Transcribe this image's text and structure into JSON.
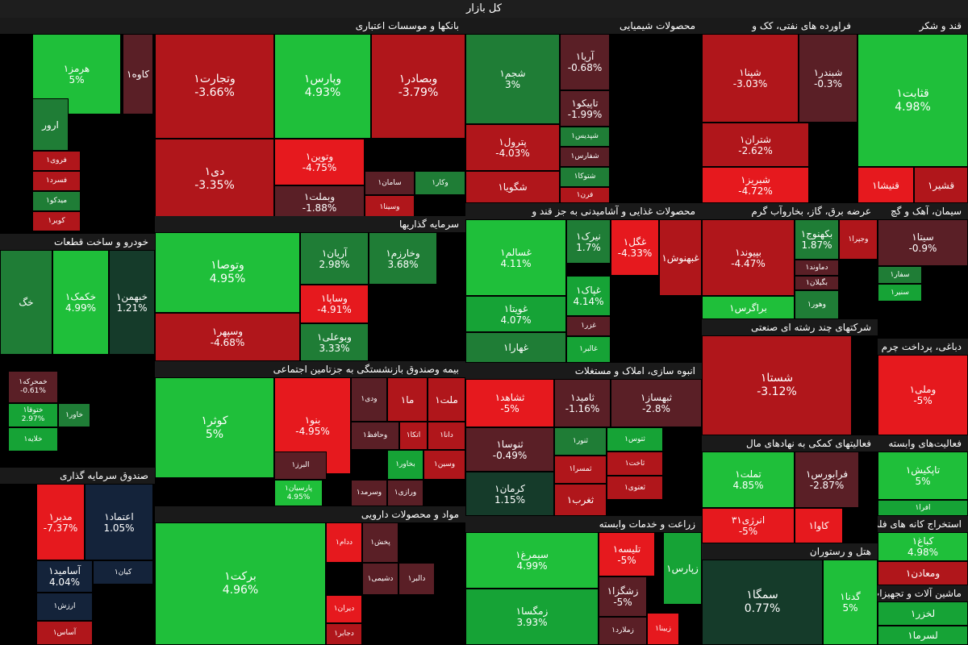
{
  "title": "کل بازار",
  "colors": {
    "strong_up": "#1fbf3a",
    "up": "#16a336",
    "mild_up": "#1f7d36",
    "flat": "#153b2a",
    "mild_down": "#5a1f26",
    "down": "#b0161b",
    "strong_down": "#e6191e",
    "navy": "#14233a"
  },
  "chart_data": {
    "type": "treemap",
    "sectors": [
      {
        "name": "",
        "tiles": [
          {
            "n": "هرمز۱",
            "v": "5%",
            "c": "strong_up"
          },
          {
            "n": "کاوه۱",
            "v": "",
            "c": "mild_down"
          },
          {
            "n": "فروی۱",
            "v": "",
            "c": "down"
          },
          {
            "n": "فسرد۱",
            "v": "",
            "c": "down"
          },
          {
            "n": "میدکو۱",
            "v": "",
            "c": "mild_up"
          },
          {
            "n": "کویر۱",
            "v": "",
            "c": "down"
          },
          {
            "n": "ارور",
            "v": "",
            "c": "mild_up"
          }
        ]
      },
      {
        "name": "بانکها و موسسات اعتباری",
        "tiles": [
          {
            "n": "وتجارت۱",
            "v": "-3.66%",
            "c": "down"
          },
          {
            "n": "وپارس۱",
            "v": "4.93%",
            "c": "strong_up"
          },
          {
            "n": "وبصادر۱",
            "v": "-3.79%",
            "c": "down"
          },
          {
            "n": "دی۱",
            "v": "-3.35%",
            "c": "down"
          },
          {
            "n": "وتوین۱",
            "v": "-4.75%",
            "c": "strong_down"
          },
          {
            "n": "وبملت۱",
            "v": "-1.88%",
            "c": "mild_down"
          },
          {
            "n": "سامان۱",
            "v": "",
            "c": "mild_down"
          },
          {
            "n": "وکار۱",
            "v": "",
            "c": "mild_up"
          },
          {
            "n": "وسینا۱",
            "v": "",
            "c": "down"
          }
        ]
      },
      {
        "name": "محصولات شیمیایی",
        "tiles": [
          {
            "n": "شجم۱",
            "v": "3%",
            "c": "mild_up"
          },
          {
            "n": "آریا۱",
            "v": "-0.68%",
            "c": "mild_down"
          },
          {
            "n": "تاپیکو۱",
            "v": "-1.99%",
            "c": "mild_down"
          },
          {
            "n": "پترول۱",
            "v": "-4.03%",
            "c": "down"
          },
          {
            "n": "شپدیس۱",
            "v": "",
            "c": "mild_up"
          },
          {
            "n": "شفارس۱",
            "v": "",
            "c": "mild_down"
          },
          {
            "n": "شگویا۱",
            "v": "",
            "c": "down"
          },
          {
            "n": "شتوکا۱",
            "v": "",
            "c": "mild_up"
          },
          {
            "n": "فرن۱",
            "v": "",
            "c": "down"
          }
        ]
      },
      {
        "name": "فراورده های نفتی، کک و",
        "tiles": [
          {
            "n": "شپنا۱",
            "v": "-3.03%",
            "c": "down"
          },
          {
            "n": "شبندر۱",
            "v": "-0.3%",
            "c": "mild_down"
          },
          {
            "n": "شتران۱",
            "v": "-2.62%",
            "c": "down"
          },
          {
            "n": "شبریز۱",
            "v": "-4.72%",
            "c": "strong_down"
          }
        ]
      },
      {
        "name": "قند و شکر",
        "tiles": [
          {
            "n": "قثابت۱",
            "v": "4.98%",
            "c": "strong_up"
          },
          {
            "n": "قنیشا۱",
            "v": "",
            "c": "strong_down"
          },
          {
            "n": "قشیر۱",
            "v": "",
            "c": "down"
          }
        ]
      },
      {
        "name": "سرمایه گذاریها",
        "tiles": [
          {
            "n": "وتوصا۱",
            "v": "4.95%",
            "c": "strong_up"
          },
          {
            "n": "آریان۱",
            "v": "2.98%",
            "c": "mild_up"
          },
          {
            "n": "وخارزم۱",
            "v": "3.68%",
            "c": "mild_up"
          },
          {
            "n": "وساپا۱",
            "v": "-4.91%",
            "c": "strong_down"
          },
          {
            "n": "وسپهر۱",
            "v": "-4.68%",
            "c": "down"
          },
          {
            "n": "وبوعلی۱",
            "v": "3.33%",
            "c": "mild_up"
          }
        ]
      },
      {
        "name": "محصولات غذایی و آشامیدنی به جز قند و",
        "tiles": [
          {
            "n": "غسالم۱",
            "v": "4.11%",
            "c": "strong_up"
          },
          {
            "n": "غگل۱",
            "v": "-4.33%",
            "c": "strong_down"
          },
          {
            "n": "نیرک۱",
            "v": "1.7%",
            "c": "mild_up"
          },
          {
            "n": "غبهنوش۱",
            "v": "",
            "c": "down"
          },
          {
            "n": "غویتا۱",
            "v": "4.07%",
            "c": "up"
          },
          {
            "n": "غپاک۱",
            "v": "4.14%",
            "c": "up"
          },
          {
            "n": "غزر۱",
            "v": "",
            "c": "mild_down"
          },
          {
            "n": "غهارا۱",
            "v": "",
            "c": "mild_up"
          },
          {
            "n": "غالبر۱",
            "v": "",
            "c": "up"
          }
        ]
      },
      {
        "name": "عرضه برق، گاز، بخاروآب گرم",
        "tiles": [
          {
            "n": "بپیوند۱",
            "v": "-4.47%",
            "c": "down"
          },
          {
            "n": "بکهنوج۱",
            "v": "1.87%",
            "c": "mild_up"
          },
          {
            "n": "وجپرا۱",
            "v": "",
            "c": "down"
          },
          {
            "n": "دماوند۱",
            "v": "",
            "c": "mild_down"
          },
          {
            "n": "بگیلان۱",
            "v": "",
            "c": "mild_down"
          },
          {
            "n": "براگرس۱",
            "v": "",
            "c": "strong_up"
          },
          {
            "n": "وهور۱",
            "v": "",
            "c": "mild_up"
          }
        ]
      },
      {
        "name": "سیمان، آهک و گچ",
        "tiles": [
          {
            "n": "سیتا۱",
            "v": "-0.9%",
            "c": "mild_down"
          },
          {
            "n": "سفار۱",
            "v": "",
            "c": "mild_up"
          },
          {
            "n": "سنیر۱",
            "v": "",
            "c": "up"
          }
        ]
      },
      {
        "name": "خودرو و ساخت قطعات",
        "tiles": [
          {
            "n": "خگ",
            "v": "",
            "c": "mild_up"
          },
          {
            "n": "خکمک۱",
            "v": "4.99%",
            "c": "strong_up"
          },
          {
            "n": "خبهمن۱",
            "v": "1.21%",
            "c": "flat"
          },
          {
            "n": "خمحرکه۱",
            "v": "-0.61%",
            "c": "mild_down"
          },
          {
            "n": "ختوقا۱",
            "v": "2.97%",
            "c": "up"
          },
          {
            "n": "خاور۱",
            "v": "",
            "c": "mild_up"
          },
          {
            "n": "خلایه۱",
            "v": "",
            "c": "up"
          }
        ]
      },
      {
        "name": "شرکتهای چند رشته ای صنعتی",
        "tiles": [
          {
            "n": "شستا۱",
            "v": "-3.12%",
            "c": "down"
          }
        ]
      },
      {
        "name": "دباغی، پرداخت چرم و س",
        "tiles": [
          {
            "n": "وملی۱",
            "v": "-5%",
            "c": "strong_down"
          }
        ]
      },
      {
        "name": "بیمه وصندوق بازنشستگی به جزتامین اجتماعی",
        "tiles": [
          {
            "n": "کوثر۱",
            "v": "5%",
            "c": "strong_up"
          },
          {
            "n": "بنو۱",
            "v": "-4.95%",
            "c": "strong_down"
          },
          {
            "n": "ودی۱",
            "v": "",
            "c": "mild_down"
          },
          {
            "n": "ما۱",
            "v": "",
            "c": "down"
          },
          {
            "n": "ملت۱",
            "v": "",
            "c": "down"
          },
          {
            "n": "وحافظ۱",
            "v": "",
            "c": "mild_down"
          },
          {
            "n": "البرز۱",
            "v": "",
            "c": "mild_down"
          },
          {
            "n": "پارسیان۱",
            "v": "4.95%",
            "c": "strong_up"
          },
          {
            "n": "بخاور۱",
            "v": "",
            "c": "up"
          },
          {
            "n": "وسین۱",
            "v": "",
            "c": "down"
          },
          {
            "n": "وسرمد۱",
            "v": "",
            "c": "mild_down"
          },
          {
            "n": "ورازی۱",
            "v": "",
            "c": "mild_down"
          },
          {
            "n": "دانا۱",
            "v": "",
            "c": "down"
          },
          {
            "n": "اتکا۱",
            "v": "",
            "c": "down"
          }
        ]
      },
      {
        "name": "انبوه سازی، املاک و مستغلات",
        "tiles": [
          {
            "n": "ثشاهد۱",
            "v": "-5%",
            "c": "strong_down"
          },
          {
            "n": "ثامید۱",
            "v": "-1.16%",
            "c": "mild_down"
          },
          {
            "n": "ثبهساز۱",
            "v": "-2.8%",
            "c": "mild_down"
          },
          {
            "n": "ثنوسا۱",
            "v": "-0.49%",
            "c": "mild_down"
          },
          {
            "n": "ثنور۱",
            "v": "",
            "c": "mild_up"
          },
          {
            "n": "ثتوس۱",
            "v": "",
            "c": "up"
          },
          {
            "n": "کرمان۱",
            "v": "1.15%",
            "c": "flat"
          },
          {
            "n": "ثمسرا۱",
            "v": "",
            "c": "down"
          },
          {
            "n": "ثاخت۱",
            "v": "",
            "c": "down"
          },
          {
            "n": "ثعتوی۱",
            "v": "",
            "c": "down"
          },
          {
            "n": "ثغرب۱",
            "v": "",
            "c": "down"
          }
        ]
      },
      {
        "name": "فعالیتهای کمکی به نهادهای مال",
        "tiles": [
          {
            "n": "تملت۱",
            "v": "4.85%",
            "c": "strong_up"
          },
          {
            "n": "فرابورس۱",
            "v": "-2.87%",
            "c": "mild_down"
          },
          {
            "n": "انرژی۳۱",
            "v": "-5%",
            "c": "strong_down"
          },
          {
            "n": "کاوا۱",
            "v": "",
            "c": "strong_down"
          }
        ]
      },
      {
        "name": "صندوق سرمایه گذاری",
        "tiles": [
          {
            "n": "مدیر۱",
            "v": "-7.37%",
            "c": "strong_down"
          },
          {
            "n": "اعتماد۱",
            "v": "1.05%",
            "c": "navy"
          },
          {
            "n": "آسامید۱",
            "v": "4.04%",
            "c": "navy"
          },
          {
            "n": "کیان۱",
            "v": "",
            "c": "navy"
          },
          {
            "n": "ارزش۱",
            "v": "",
            "c": "navy"
          },
          {
            "n": "آساس۱",
            "v": "",
            "c": "down"
          }
        ]
      },
      {
        "name": "مواد و محصولات دارویی",
        "tiles": [
          {
            "n": "برکت۱",
            "v": "4.96%",
            "c": "strong_up"
          },
          {
            "n": "ددام۱",
            "v": "",
            "c": "strong_down"
          },
          {
            "n": "دیران۱",
            "v": "",
            "c": "strong_down"
          },
          {
            "n": "دجابر۱",
            "v": "",
            "c": "down"
          },
          {
            "n": "دشیمی۱",
            "v": "",
            "c": "mild_down"
          },
          {
            "n": "پخش۱",
            "v": "",
            "c": "mild_down"
          },
          {
            "n": "دالبر۱",
            "v": "",
            "c": "mild_down"
          }
        ]
      },
      {
        "name": "زراعت و خدمات وابسته",
        "tiles": [
          {
            "n": "سیمرغ۱",
            "v": "4.99%",
            "c": "strong_up"
          },
          {
            "n": "زمگسا۱",
            "v": "3.93%",
            "c": "up"
          },
          {
            "n": "تلیسه۱",
            "v": "-5%",
            "c": "strong_down"
          },
          {
            "n": "زشگزا۱",
            "v": "-5%",
            "c": "mild_down"
          },
          {
            "n": "زملارد۱",
            "v": "",
            "c": "mild_down"
          },
          {
            "n": "زپارس۱",
            "v": "",
            "c": "up"
          },
          {
            "n": "زبینا۱",
            "v": "",
            "c": "strong_down"
          }
        ]
      },
      {
        "name": "هتل و رستوران",
        "tiles": [
          {
            "n": "سمگا۱",
            "v": "0.77%",
            "c": "flat"
          },
          {
            "n": "گدنا۱",
            "v": "5%",
            "c": "strong_up"
          }
        ]
      },
      {
        "name": "فعالیت‌های وابسته",
        "tiles": [
          {
            "n": "تاپکیش۱",
            "v": "5%",
            "c": "strong_up"
          },
          {
            "n": "افرا۱",
            "v": "",
            "c": "up"
          }
        ]
      },
      {
        "name": "استخراج کانه های فلزی",
        "tiles": [
          {
            "n": "کباغ۱",
            "v": "4.98%",
            "c": "strong_up"
          },
          {
            "n": "ومعادن۱",
            "v": "",
            "c": "down"
          }
        ]
      },
      {
        "name": "ماشین آلات و تجهیزات",
        "tiles": [
          {
            "n": "لخزر۱",
            "v": "",
            "c": "up"
          },
          {
            "n": "لسرما۱",
            "v": "",
            "c": "up"
          }
        ]
      }
    ]
  }
}
